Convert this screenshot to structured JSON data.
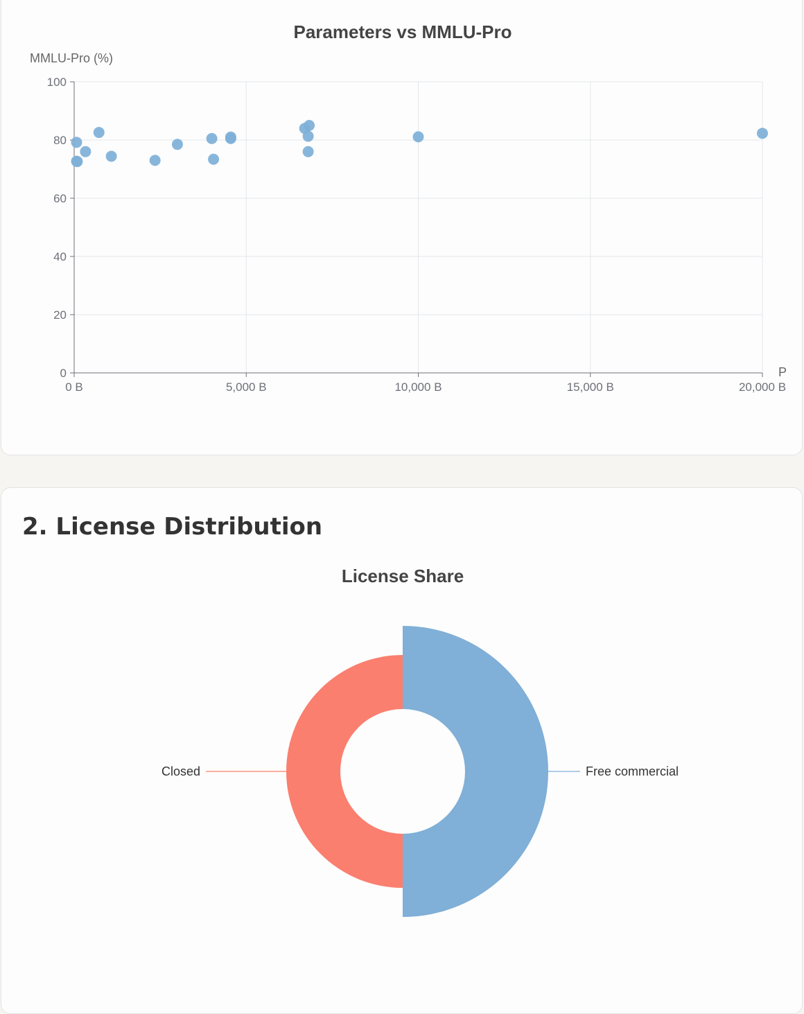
{
  "scatter": {
    "chart_data": {
      "type": "scatter",
      "title": "Parameters vs MMLU-Pro",
      "ylabel": "MMLU-Pro (%)",
      "xlabel_partial": "P",
      "xlim": [
        0,
        20000
      ],
      "ylim": [
        0,
        100
      ],
      "x_ticks": [
        0,
        5000,
        10000,
        15000,
        20000
      ],
      "x_tick_labels": [
        "0 B",
        "5,000 B",
        "10,000 B",
        "15,000 B",
        "20,000 B"
      ],
      "y_ticks": [
        0,
        20,
        40,
        60,
        80,
        100
      ],
      "y_tick_labels": [
        "0",
        "20",
        "40",
        "60",
        "80",
        "100"
      ],
      "grid": true,
      "color": "#7eb0d8",
      "points": [
        {
          "x": 70,
          "y": 79.2
        },
        {
          "x": 70,
          "y": 72.7
        },
        {
          "x": 90,
          "y": 72.6
        },
        {
          "x": 330,
          "y": 76.0
        },
        {
          "x": 720,
          "y": 82.6
        },
        {
          "x": 1080,
          "y": 74.4
        },
        {
          "x": 2350,
          "y": 73.0
        },
        {
          "x": 3000,
          "y": 78.5
        },
        {
          "x": 4000,
          "y": 80.5
        },
        {
          "x": 4050,
          "y": 73.4
        },
        {
          "x": 4550,
          "y": 81.0
        },
        {
          "x": 4550,
          "y": 80.5
        },
        {
          "x": 6700,
          "y": 84.0
        },
        {
          "x": 6830,
          "y": 85.0
        },
        {
          "x": 6800,
          "y": 81.3
        },
        {
          "x": 6800,
          "y": 76.0
        },
        {
          "x": 10000,
          "y": 81.1
        },
        {
          "x": 20000,
          "y": 82.3
        }
      ]
    }
  },
  "license": {
    "section_title": "2. License Distribution",
    "chart_data": {
      "type": "pie",
      "subtype": "rose-donut",
      "title": "License Share",
      "slices": [
        {
          "label": "Free commercial",
          "value": 1,
          "radius_ratio": 1.0,
          "color": "#80afd7"
        },
        {
          "label": "Closed",
          "value": 1,
          "radius_ratio": 0.65,
          "color": "#fa7f6f"
        }
      ]
    }
  }
}
